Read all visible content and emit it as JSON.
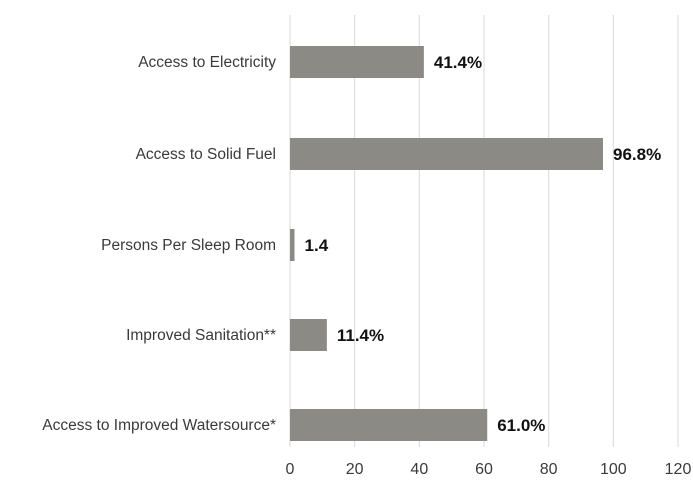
{
  "chart_data": {
    "type": "bar",
    "orientation": "horizontal",
    "categories": [
      "Access to Electricity",
      "Access to Solid  Fuel",
      "Persons Per Sleep Room",
      "Improved Sanitation**",
      "Access to Improved Watersource*"
    ],
    "values": [
      41.4,
      96.8,
      1.4,
      11.4,
      61.0
    ],
    "data_labels": [
      "41.4%",
      "96.8%",
      "1.4",
      "11.4%",
      "61.0%"
    ],
    "xlim": [
      0,
      120
    ],
    "x_ticks": [
      "0",
      "20",
      "40",
      "60",
      "80",
      "100",
      "120"
    ],
    "grid": "vertical",
    "bar_color": "#8c8a84",
    "gridline_color": "#d9d9d9"
  }
}
